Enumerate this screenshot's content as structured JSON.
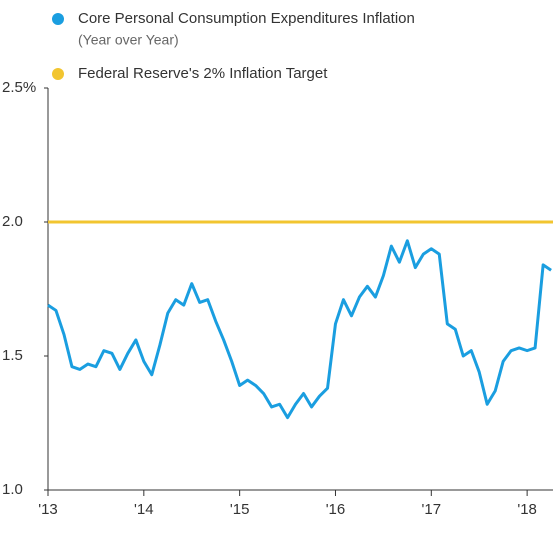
{
  "chart_data": {
    "type": "line",
    "series": [
      {
        "name": "Core Personal Consumption Expenditures Inflation",
        "note": "(Year over Year)",
        "color": "#1a9ee0",
        "values": [
          1.69,
          1.67,
          1.58,
          1.46,
          1.45,
          1.47,
          1.46,
          1.52,
          1.51,
          1.45,
          1.51,
          1.56,
          1.48,
          1.43,
          1.54,
          1.66,
          1.71,
          1.69,
          1.77,
          1.7,
          1.71,
          1.63,
          1.56,
          1.48,
          1.39,
          1.41,
          1.39,
          1.36,
          1.31,
          1.32,
          1.27,
          1.32,
          1.36,
          1.31,
          1.35,
          1.38,
          1.62,
          1.71,
          1.65,
          1.72,
          1.76,
          1.72,
          1.8,
          1.91,
          1.85,
          1.93,
          1.83,
          1.88,
          1.9,
          1.88,
          1.62,
          1.6,
          1.5,
          1.52,
          1.44,
          1.32,
          1.37,
          1.48,
          1.52,
          1.53,
          1.52,
          1.53,
          1.84,
          1.82
        ]
      }
    ],
    "x": [
      2013,
      2013.083,
      2013.167,
      2013.25,
      2013.333,
      2013.417,
      2013.5,
      2013.583,
      2013.667,
      2013.75,
      2013.833,
      2013.917,
      2014,
      2014.083,
      2014.167,
      2014.25,
      2014.333,
      2014.417,
      2014.5,
      2014.583,
      2014.667,
      2014.75,
      2014.833,
      2014.917,
      2015,
      2015.083,
      2015.167,
      2015.25,
      2015.333,
      2015.417,
      2015.5,
      2015.583,
      2015.667,
      2015.75,
      2015.833,
      2015.917,
      2016,
      2016.083,
      2016.167,
      2016.25,
      2016.333,
      2016.417,
      2016.5,
      2016.583,
      2016.667,
      2016.75,
      2016.833,
      2016.917,
      2017,
      2017.083,
      2017.167,
      2017.25,
      2017.333,
      2017.417,
      2017.5,
      2017.583,
      2017.667,
      2017.75,
      2017.833,
      2017.917,
      2018,
      2018.083,
      2018.167,
      2018.25
    ],
    "target": {
      "name": "Federal Reserve's 2% Inflation Target",
      "color": "#f2c530",
      "value": 2
    },
    "xlim": [
      2013,
      2018.27
    ],
    "xticks": [
      {
        "value": 2013,
        "label": "'13"
      },
      {
        "value": 2014,
        "label": "'14"
      },
      {
        "value": 2015,
        "label": "'15"
      },
      {
        "value": 2016,
        "label": "'16"
      },
      {
        "value": 2017,
        "label": "'17"
      },
      {
        "value": 2018,
        "label": "'18"
      }
    ],
    "ylim": [
      1.0,
      2.5
    ],
    "yticks": [
      {
        "value": 1.0,
        "label": "1.0"
      },
      {
        "value": 1.5,
        "label": "1.5"
      },
      {
        "value": 2.0,
        "label": "2.0"
      },
      {
        "value": 2.5,
        "label": "2.5%"
      }
    ]
  }
}
